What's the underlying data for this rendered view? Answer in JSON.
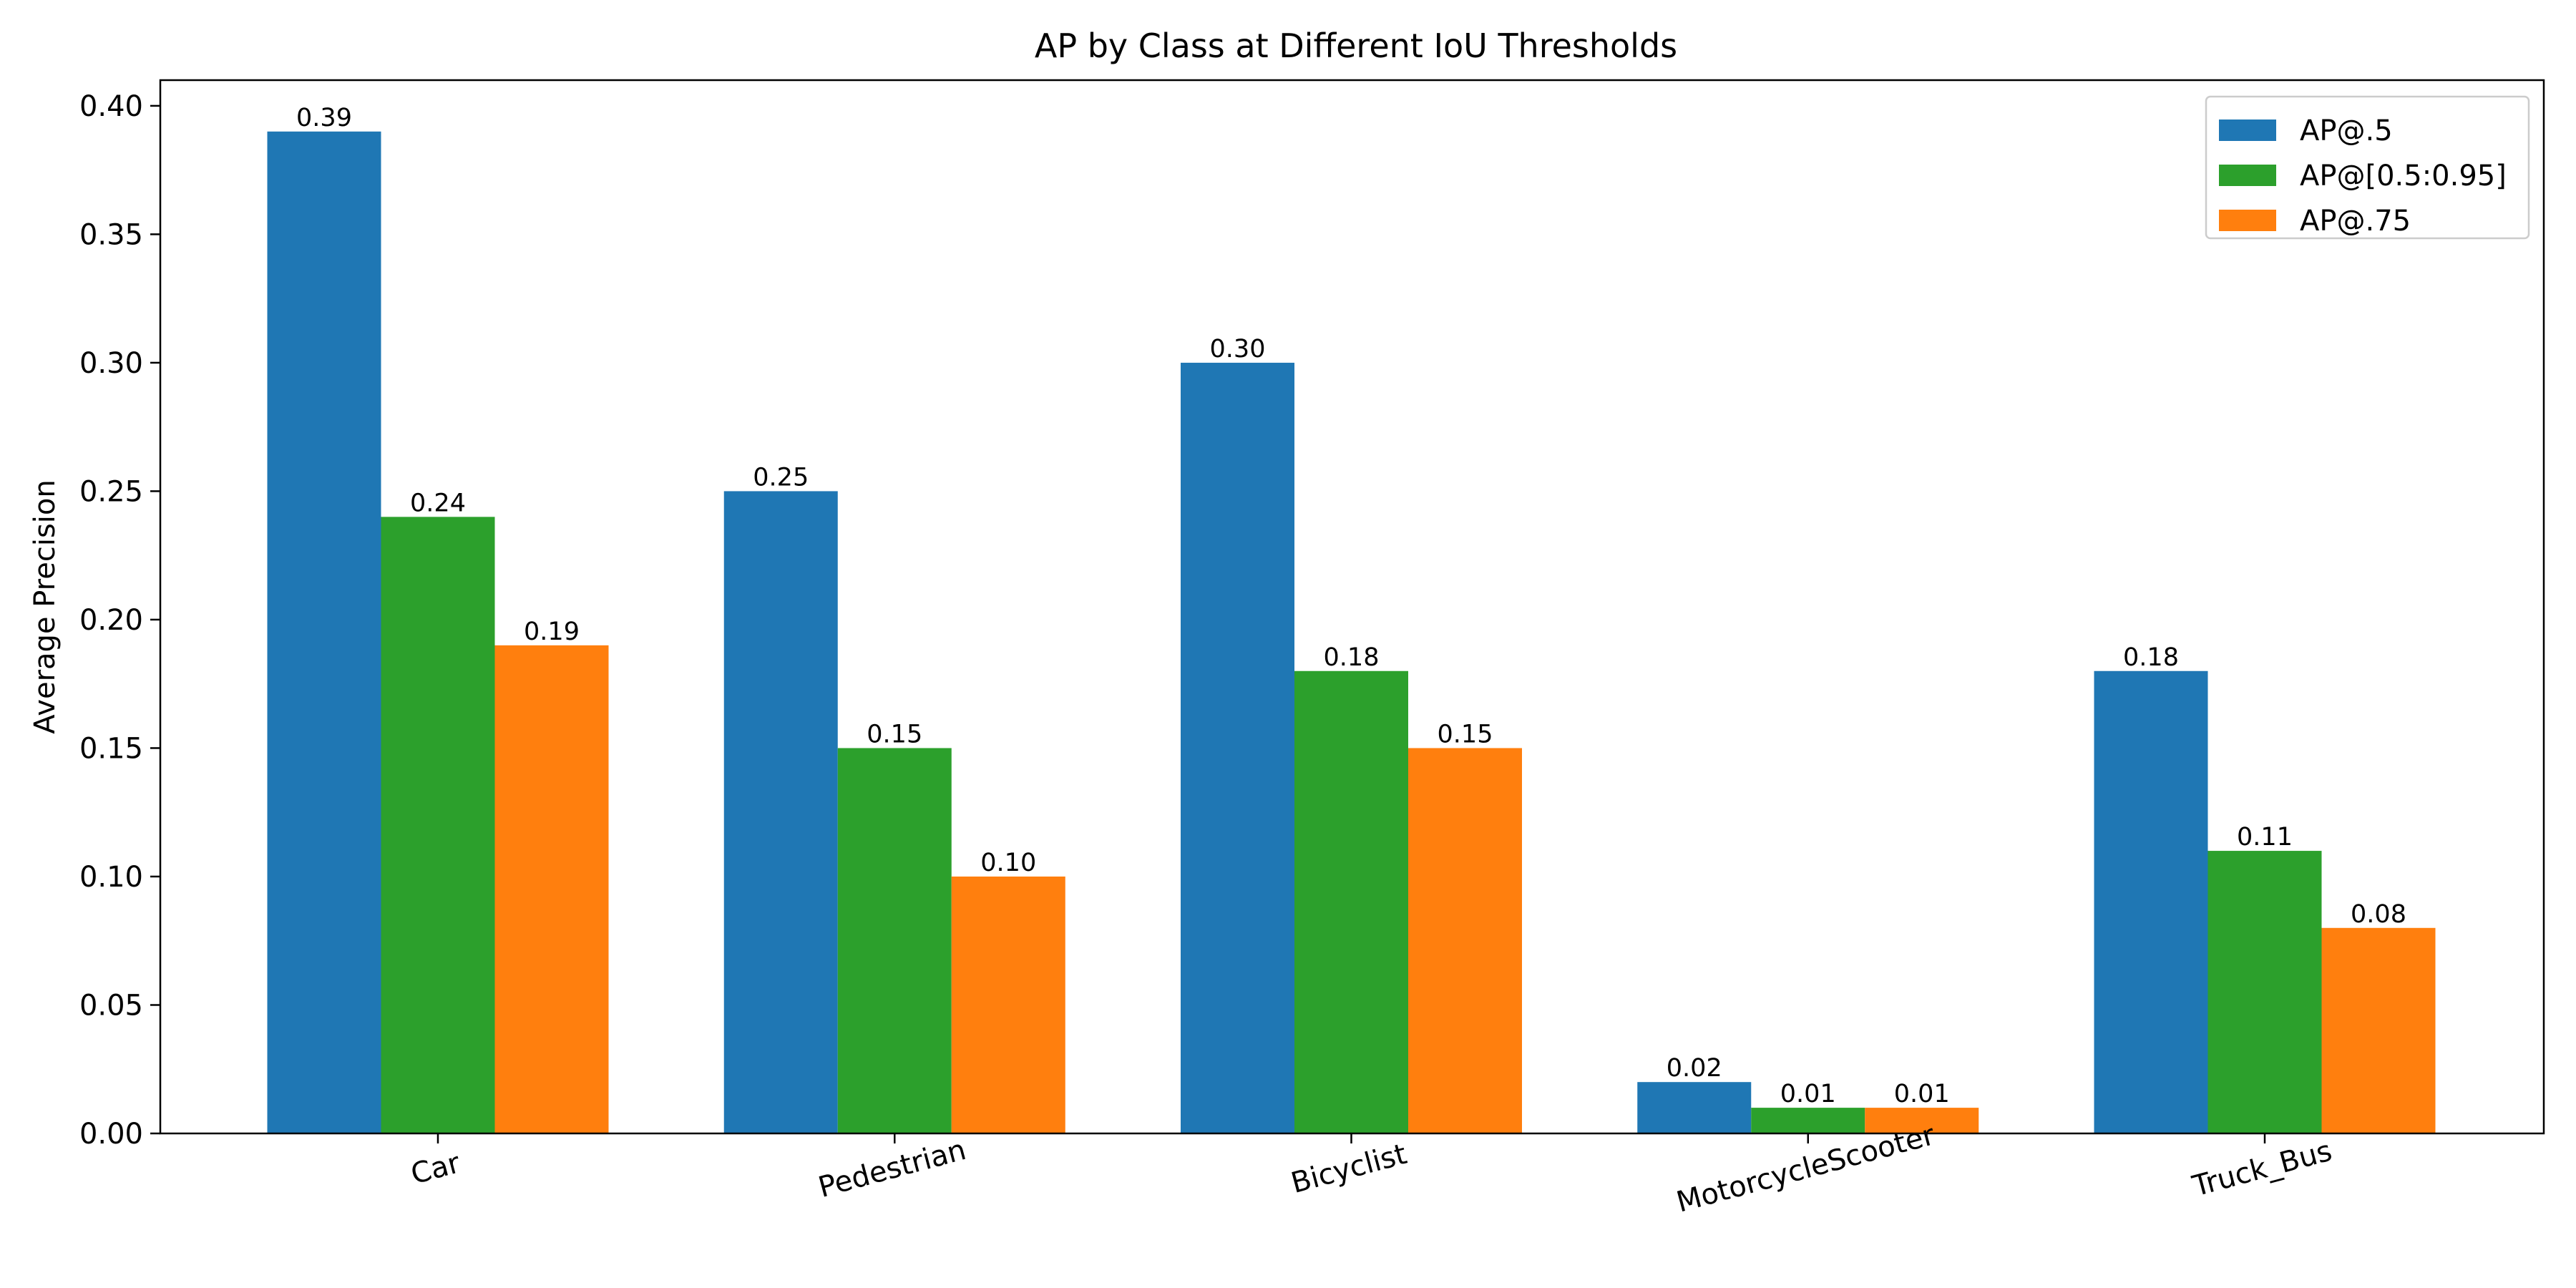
{
  "chart_data": {
    "type": "bar",
    "title": "AP by Class at Different IoU Thresholds",
    "xlabel": "",
    "ylabel": "Average Precision",
    "ylim": [
      0,
      0.41
    ],
    "yticks": [
      "0.00",
      "0.05",
      "0.10",
      "0.15",
      "0.20",
      "0.25",
      "0.30",
      "0.35",
      "0.40"
    ],
    "categories": [
      "Car",
      "Pedestrian",
      "Bicyclist",
      "MotorcycleScooter",
      "Truck_Bus"
    ],
    "series": [
      {
        "name": "AP@.5",
        "color": "#1f77b4",
        "values": [
          0.39,
          0.25,
          0.3,
          0.02,
          0.18
        ],
        "labels": [
          "0.39",
          "0.25",
          "0.30",
          "0.02",
          "0.18"
        ]
      },
      {
        "name": "AP@[0.5:0.95]",
        "color": "#2ca02c",
        "values": [
          0.24,
          0.15,
          0.18,
          0.01,
          0.11
        ],
        "labels": [
          "0.24",
          "0.15",
          "0.18",
          "0.01",
          "0.11"
        ]
      },
      {
        "name": "AP@.75",
        "color": "#ff7f0e",
        "values": [
          0.19,
          0.1,
          0.15,
          0.01,
          0.08
        ],
        "labels": [
          "0.19",
          "0.10",
          "0.15",
          "0.01",
          "0.08"
        ]
      }
    ],
    "grid": false,
    "legend_position": "top-right"
  }
}
